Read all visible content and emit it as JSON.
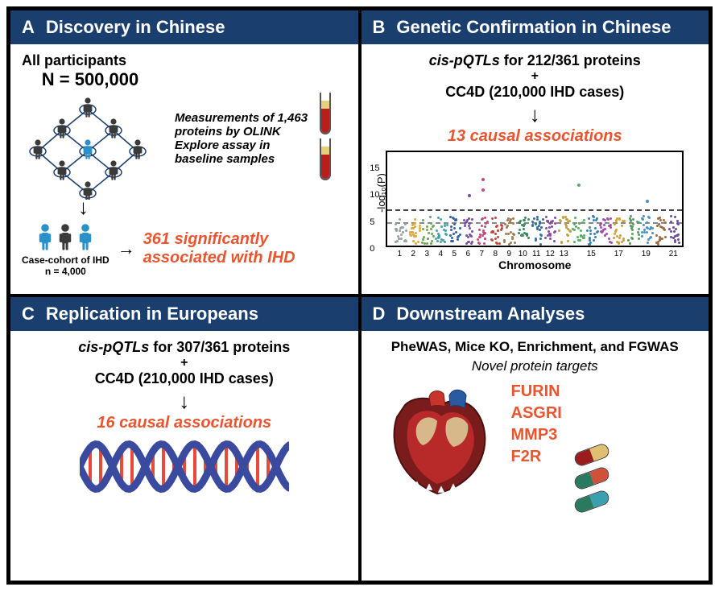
{
  "panels": {
    "A": {
      "letter": "A",
      "title": "Discovery in Chinese",
      "participants_label": "All participants",
      "participants_n": "N = 500,000",
      "measure_text": "Measurements of 1,463 proteins by OLINK Explore assay in baseline samples",
      "cohort_label1": "Case-cohort of IHD",
      "cohort_label2": "n = 4,000",
      "result_text": "361 significantly associated with IHD",
      "people_color_dark": "#3a3a3a",
      "people_color_blue": "#2a90c8",
      "tube_count": 2
    },
    "B": {
      "letter": "B",
      "title": "Genetic Confirmation in Chinese",
      "line1_prefix": "cis-pQTLs",
      "line1_rest": " for 212/361 proteins",
      "plus": "+",
      "line2": "CC4D (210,000 IHD cases)",
      "result_text": "13 causal associations",
      "chart": {
        "ylabel": "-log₁₀(P)",
        "ymax": 18,
        "yticks": [
          0,
          5,
          10,
          15
        ],
        "threshold1_y": 7.3,
        "threshold2_y": 5.0,
        "xtitle": "Chromosome",
        "chromosomes": [
          "1",
          "2",
          "3",
          "4",
          "5",
          "6",
          "7",
          "8",
          "9",
          "10",
          "11",
          "12",
          "13",
          "15",
          "17",
          "19",
          "21"
        ],
        "chrom_colors": [
          "#9aa0a0",
          "#e0a63a",
          "#6aa755",
          "#42a3a8",
          "#3361a8",
          "#7a4da3",
          "#c24a7a",
          "#c4473a",
          "#a07a50",
          "#3a8a5e",
          "#2f6f9e",
          "#8a4aa0",
          "#c0a040",
          "#5aae6a",
          "#3a80b0",
          "#a84aae",
          "#d0a030",
          "#5a9c60",
          "#4a90c0",
          "#a06a40",
          "#6a4aa0"
        ],
        "high_points": [
          {
            "chrom_index": 5,
            "y": 9
          },
          {
            "chrom_index": 6,
            "y": 12
          },
          {
            "chrom_index": 6,
            "y": 10
          },
          {
            "chrom_index": 13,
            "y": 11
          },
          {
            "chrom_index": 18,
            "y": 8
          }
        ]
      }
    },
    "C": {
      "letter": "C",
      "title": "Replication in Europeans",
      "line1_prefix": "cis-pQTLs",
      "line1_rest": " for 307/361 proteins",
      "plus": "+",
      "line2": "CC4D (210,000 IHD cases)",
      "result_text": "16 causal associations",
      "dna_colors": {
        "backbone": "#3a4a9e",
        "rungs": [
          "#e84a3a",
          "#f4c83a",
          "#4aa84a",
          "#3a90c8"
        ]
      }
    },
    "D": {
      "letter": "D",
      "title": "Downstream Analyses",
      "line1": "PheWAS, Mice KO, Enrichment, and FGWAS",
      "subtitle": "Novel protein targets",
      "proteins": [
        "FURIN",
        "ASGRI",
        "MMP3",
        "F2R"
      ],
      "heart_colors": {
        "outer": "#7b1c1c",
        "muscle": "#b82a2a",
        "vessel_blue": "#2a5aa0",
        "vessel_red": "#c8342a",
        "tan": "#d6b88a"
      },
      "pills": [
        {
          "left": "#9a1c1c",
          "right": "#e0c070"
        },
        {
          "left": "#2a7a60",
          "right": "#d0503a"
        },
        {
          "left": "#2a7a60",
          "right": "#3aa0b0"
        }
      ]
    }
  },
  "layout": {
    "header_bg": "#1a3e6e",
    "header_fg": "#ffffff",
    "accent_color": "#e8552f",
    "border_color": "#000000",
    "font": "Arial"
  }
}
